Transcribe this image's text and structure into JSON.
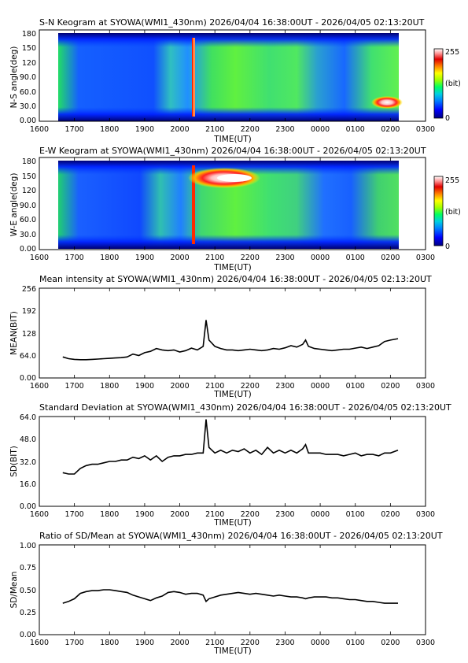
{
  "x_axis": {
    "label": "TIME(UT)",
    "ticks": [
      "1600",
      "1700",
      "1800",
      "1900",
      "2000",
      "2100",
      "2200",
      "2300",
      "0000",
      "0100",
      "0200",
      "0300"
    ]
  },
  "keograms": [
    {
      "title": "S-N Keogram at SYOWA(WMI1_430nm)   2026/04/04 16:38:00UT - 2026/04/05 02:13:20UT",
      "ylabel": "N-S angle(deg)",
      "yticks": [
        "180",
        "150",
        "120",
        "90.0",
        "60.0",
        "30.0",
        "0.00"
      ],
      "colorbar": {
        "max": "255",
        "unit": "(bit)",
        "min": "0"
      }
    },
    {
      "title": "E-W Keogram at SYOWA(WMI1_430nm)   2026/04/04 16:38:00UT - 2026/04/05 02:13:20UT",
      "ylabel": "W-E angle(deg)",
      "yticks": [
        "180",
        "150",
        "120",
        "90.0",
        "60.0",
        "30.0",
        "0.00"
      ],
      "colorbar": {
        "max": "255",
        "unit": "(bit)",
        "min": "0"
      }
    }
  ],
  "colors": {
    "palette": [
      "#000080",
      "#0000ff",
      "#0060ff",
      "#00b0ff",
      "#00e0c0",
      "#00ff60",
      "#60ff00",
      "#c0ff00",
      "#ffff00",
      "#ffb000",
      "#ff4000",
      "#d00000",
      "#ff9090",
      "#ffffff"
    ],
    "line": "#000000",
    "frame": "#000000"
  },
  "chart_data": [
    {
      "type": "line",
      "title": "Mean intensity at SYOWA(WMI1_430nm)   2026/04/04 16:38:00UT - 2026/04/05 02:13:20UT",
      "xlabel": "TIME(UT)",
      "ylabel": "MEAN(BIT)",
      "yticks": [
        "256",
        "192",
        "128",
        "64.0",
        "0.00"
      ],
      "ylim": [
        0,
        256
      ],
      "xlim": [
        "16:00",
        "03:00"
      ],
      "x": [
        "16:40",
        "16:50",
        "17:00",
        "17:10",
        "17:20",
        "17:30",
        "17:40",
        "17:50",
        "18:00",
        "18:10",
        "18:20",
        "18:30",
        "18:40",
        "18:50",
        "19:00",
        "19:10",
        "19:20",
        "19:30",
        "19:40",
        "19:50",
        "20:00",
        "20:10",
        "20:20",
        "20:30",
        "20:40",
        "20:45",
        "20:50",
        "21:00",
        "21:10",
        "21:20",
        "21:30",
        "21:40",
        "21:50",
        "22:00",
        "22:10",
        "22:20",
        "22:30",
        "22:40",
        "22:50",
        "23:00",
        "23:10",
        "23:20",
        "23:30",
        "23:35",
        "23:40",
        "23:50",
        "00:00",
        "00:10",
        "00:20",
        "00:30",
        "00:40",
        "00:50",
        "01:00",
        "01:10",
        "01:20",
        "01:30",
        "01:40",
        "01:50",
        "02:00",
        "02:13"
      ],
      "series": [
        {
          "values": [
            60,
            55,
            53,
            52,
            52,
            53,
            54,
            55,
            56,
            57,
            58,
            60,
            68,
            64,
            72,
            76,
            84,
            80,
            78,
            80,
            74,
            78,
            85,
            80,
            90,
            165,
            108,
            90,
            84,
            80,
            80,
            78,
            80,
            82,
            80,
            78,
            80,
            84,
            82,
            86,
            92,
            88,
            96,
            108,
            90,
            84,
            82,
            80,
            78,
            80,
            82,
            82,
            85,
            88,
            84,
            88,
            92,
            104,
            108,
            112
          ]
        }
      ]
    },
    {
      "type": "line",
      "title": "Standard Deviation at SYOWA(WMI1_430nm)   2026/04/04 16:38:00UT - 2026/04/05 02:13:20UT",
      "xlabel": "TIME(UT)",
      "ylabel": "SD(BIT)",
      "yticks": [
        "64.0",
        "48.0",
        "32.0",
        "16.0",
        "0.00"
      ],
      "ylim": [
        0,
        64
      ],
      "xlim": [
        "16:00",
        "03:00"
      ],
      "x": [
        "16:40",
        "16:50",
        "17:00",
        "17:10",
        "17:20",
        "17:30",
        "17:40",
        "17:50",
        "18:00",
        "18:10",
        "18:20",
        "18:30",
        "18:40",
        "18:50",
        "19:00",
        "19:10",
        "19:20",
        "19:30",
        "19:40",
        "19:50",
        "20:00",
        "20:10",
        "20:20",
        "20:30",
        "20:40",
        "20:45",
        "20:50",
        "21:00",
        "21:10",
        "21:20",
        "21:30",
        "21:40",
        "21:50",
        "22:00",
        "22:10",
        "22:20",
        "22:30",
        "22:40",
        "22:50",
        "23:00",
        "23:10",
        "23:20",
        "23:30",
        "23:35",
        "23:40",
        "23:50",
        "00:00",
        "00:10",
        "00:20",
        "00:30",
        "00:40",
        "00:50",
        "01:00",
        "01:10",
        "01:20",
        "01:30",
        "01:40",
        "01:50",
        "02:00",
        "02:13"
      ],
      "series": [
        {
          "values": [
            24,
            23,
            23,
            27,
            29,
            30,
            30,
            31,
            32,
            32,
            33,
            33,
            35,
            34,
            36,
            33,
            36,
            32,
            35,
            36,
            36,
            37,
            37,
            38,
            38,
            62,
            42,
            38,
            40,
            38,
            40,
            39,
            41,
            38,
            40,
            37,
            42,
            38,
            40,
            38,
            40,
            38,
            41,
            44,
            38,
            38,
            38,
            37,
            37,
            37,
            36,
            37,
            38,
            36,
            37,
            37,
            36,
            38,
            38,
            40
          ]
        }
      ]
    },
    {
      "type": "line",
      "title": "Ratio of SD/Mean at SYOWA(WMI1_430nm)   2026/04/04 16:38:00UT - 2026/04/05 02:13:20UT",
      "xlabel": "TIME(UT)",
      "ylabel": "SD/Mean",
      "yticks": [
        "1.00",
        "0.75",
        "0.50",
        "0.25",
        "0.00"
      ],
      "ylim": [
        0,
        1
      ],
      "xlim": [
        "16:00",
        "03:00"
      ],
      "x": [
        "16:40",
        "16:50",
        "17:00",
        "17:10",
        "17:20",
        "17:30",
        "17:40",
        "17:50",
        "18:00",
        "18:10",
        "18:20",
        "18:30",
        "18:40",
        "18:50",
        "19:00",
        "19:10",
        "19:20",
        "19:30",
        "19:40",
        "19:50",
        "20:00",
        "20:10",
        "20:20",
        "20:30",
        "20:40",
        "20:45",
        "20:50",
        "21:00",
        "21:10",
        "21:20",
        "21:30",
        "21:40",
        "21:50",
        "22:00",
        "22:10",
        "22:20",
        "22:30",
        "22:40",
        "22:50",
        "23:00",
        "23:10",
        "23:20",
        "23:30",
        "23:35",
        "23:40",
        "23:50",
        "00:00",
        "00:10",
        "00:20",
        "00:30",
        "00:40",
        "00:50",
        "01:00",
        "01:10",
        "01:20",
        "01:30",
        "01:40",
        "01:50",
        "02:00",
        "02:13"
      ],
      "series": [
        {
          "values": [
            0.35,
            0.37,
            0.4,
            0.46,
            0.48,
            0.49,
            0.49,
            0.5,
            0.5,
            0.49,
            0.48,
            0.47,
            0.44,
            0.42,
            0.4,
            0.38,
            0.41,
            0.43,
            0.47,
            0.48,
            0.47,
            0.45,
            0.46,
            0.46,
            0.44,
            0.37,
            0.4,
            0.42,
            0.44,
            0.45,
            0.46,
            0.47,
            0.46,
            0.45,
            0.46,
            0.45,
            0.44,
            0.43,
            0.44,
            0.43,
            0.42,
            0.42,
            0.41,
            0.4,
            0.41,
            0.42,
            0.42,
            0.42,
            0.41,
            0.41,
            0.4,
            0.39,
            0.39,
            0.38,
            0.37,
            0.37,
            0.36,
            0.35,
            0.35,
            0.35
          ]
        }
      ]
    }
  ]
}
